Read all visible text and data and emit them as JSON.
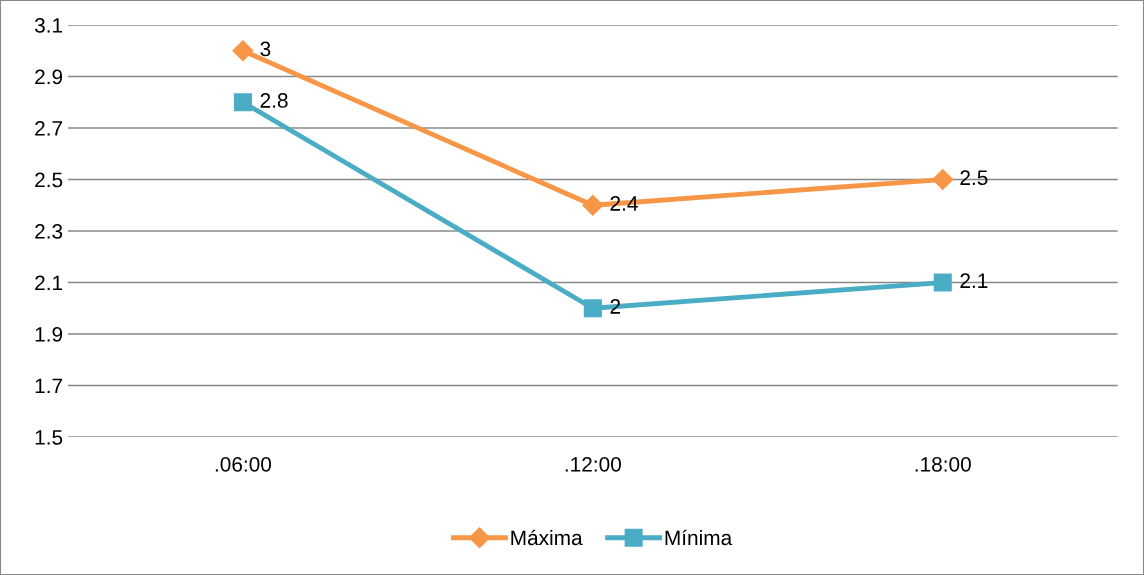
{
  "chart_data": {
    "type": "line",
    "categories": [
      ".06:00",
      ".12:00",
      ".18:00"
    ],
    "series": [
      {
        "name": "Máxima",
        "color": "#f79646",
        "values": [
          3,
          2.4,
          2.5
        ],
        "marker": "diamond"
      },
      {
        "name": "Mínima",
        "color": "#4bacc6",
        "values": [
          2.8,
          2,
          2.1
        ],
        "marker": "square"
      }
    ],
    "ylim": [
      1.5,
      3.1
    ],
    "yticks": [
      1.5,
      1.7,
      1.9,
      2.1,
      2.3,
      2.5,
      2.7,
      2.9,
      3.1
    ],
    "grid": "y",
    "legend": "bottom",
    "data_labels": true,
    "line_style": "solid"
  }
}
